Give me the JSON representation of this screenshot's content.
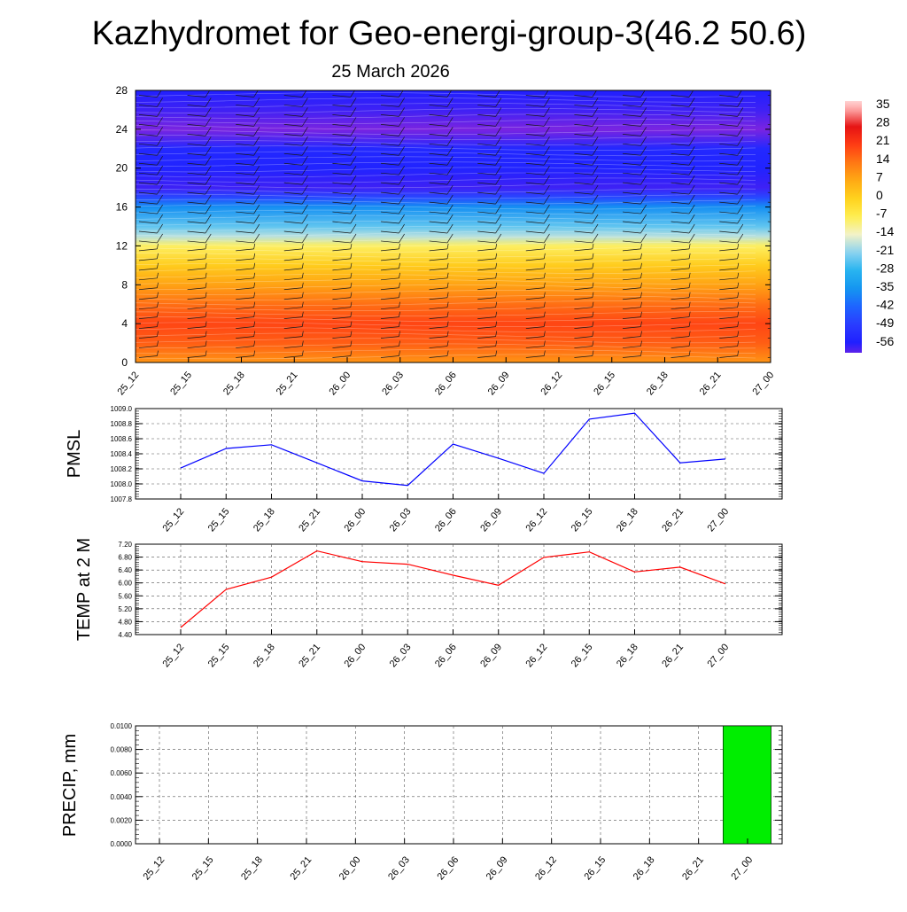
{
  "title": "Kazhydromet for Geo-energi-group-3(46.2 50.6)",
  "subtitle": "25 March 2026",
  "colors": {
    "pmsl_line": "#0000ff",
    "temp_line": "#ff0000",
    "precip_bar": "#00ee00"
  },
  "chart_data": [
    {
      "type": "heatmap",
      "name": "Vertical cross-section (temperature, wind barbs)",
      "x_tick_labels": [
        "25_12",
        "25_15",
        "25_18",
        "25_21",
        "26_00",
        "26_03",
        "26_06",
        "26_09",
        "26_12",
        "26_15",
        "26_18",
        "26_21",
        "27_00"
      ],
      "y_tick_labels": [
        "0",
        "4",
        "8",
        "12",
        "16",
        "20",
        "24",
        "28"
      ],
      "ylim": [
        0,
        28
      ],
      "colorbar_labels": [
        "35",
        "28",
        "21",
        "14",
        "7",
        "0",
        "-7",
        "-14",
        "-21",
        "-28",
        "-35",
        "-42",
        "-49",
        "-56"
      ],
      "colorbar_range": [
        -60,
        38
      ],
      "temperature_profile": [
        {
          "h": 0,
          "t": 10
        },
        {
          "h": 2,
          "t": 17
        },
        {
          "h": 4,
          "t": 20
        },
        {
          "h": 6,
          "t": 15
        },
        {
          "h": 8,
          "t": 8
        },
        {
          "h": 10,
          "t": 1
        },
        {
          "h": 12,
          "t": -8
        },
        {
          "h": 13,
          "t": -18
        },
        {
          "h": 14,
          "t": -24
        },
        {
          "h": 16,
          "t": -36
        },
        {
          "h": 17,
          "t": -47
        },
        {
          "h": 18,
          "t": -58
        },
        {
          "h": 19,
          "t": -57
        },
        {
          "h": 20,
          "t": -55
        },
        {
          "h": 22,
          "t": -54
        },
        {
          "h": 24,
          "t": -62
        },
        {
          "h": 26,
          "t": -58
        },
        {
          "h": 28,
          "t": -56
        }
      ]
    },
    {
      "type": "line",
      "name": "PMSL",
      "ylabel": "PMSL",
      "categories": [
        "25_12",
        "25_15",
        "25_18",
        "25_21",
        "26_00",
        "26_03",
        "26_06",
        "26_09",
        "26_12",
        "26_15",
        "26_18",
        "26_21",
        "27_00"
      ],
      "values": [
        1008.21,
        1008.47,
        1008.52,
        1008.28,
        1008.04,
        1007.98,
        1008.53,
        1008.34,
        1008.14,
        1008.86,
        1008.94,
        1008.28,
        1008.33
      ],
      "ylim": [
        1007.8,
        1009.0
      ],
      "y_tick_labels": [
        "1009.0",
        "1008.8",
        "1008.6",
        "1008.4",
        "1008.2",
        "1008.0",
        "1007.8"
      ]
    },
    {
      "type": "line",
      "name": "TEMP at 2 M",
      "ylabel": "TEMP at 2 M",
      "categories": [
        "25_12",
        "25_15",
        "25_18",
        "25_21",
        "26_00",
        "26_03",
        "26_06",
        "26_09",
        "26_12",
        "26_15",
        "26_18",
        "26_21",
        "27_00"
      ],
      "values": [
        4.62,
        5.8,
        6.18,
        6.99,
        6.66,
        6.58,
        6.24,
        5.93,
        6.79,
        6.96,
        6.34,
        6.49,
        5.97
      ],
      "ylim": [
        4.4,
        7.2
      ],
      "y_tick_labels": [
        "7.20",
        "6.80",
        "6.40",
        "6.00",
        "5.60",
        "5.20",
        "4.80",
        "4.40"
      ]
    },
    {
      "type": "bar",
      "name": "PRECIP, mm",
      "ylabel": "PRECIP, mm",
      "categories": [
        "25_12",
        "25_15",
        "25_18",
        "25_21",
        "26_00",
        "26_03",
        "26_06",
        "26_09",
        "26_12",
        "26_15",
        "26_18",
        "26_21",
        "27_00"
      ],
      "values": [
        0,
        0,
        0,
        0,
        0,
        0,
        0,
        0,
        0,
        0,
        0,
        0,
        0.01
      ],
      "ylim": [
        0,
        0.01
      ],
      "y_tick_labels": [
        "0.0100",
        "0.0080",
        "0.0060",
        "0.0040",
        "0.0020",
        "0.0000"
      ]
    }
  ]
}
